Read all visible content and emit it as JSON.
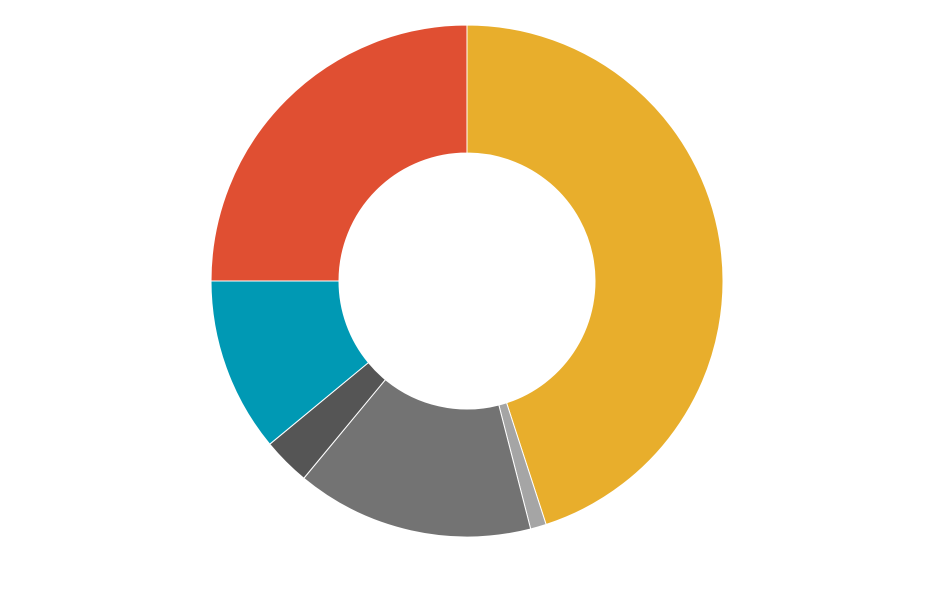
{
  "chart_data": {
    "type": "donut",
    "values": [
      45,
      1,
      15,
      3,
      11,
      25
    ],
    "colors": [
      "#e8ae2c",
      "#a5a5a5",
      "#737373",
      "#555555",
      "#0099b4",
      "#e04f32"
    ]
  }
}
